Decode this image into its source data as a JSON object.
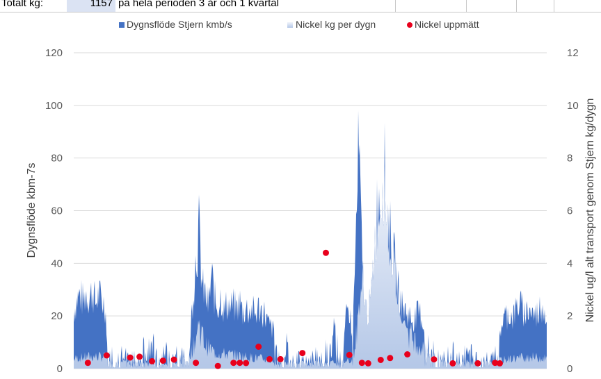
{
  "header_row": {
    "label": "Totalt kg:",
    "value": "1157",
    "note": "på hela perioden 3 år och 1 kvartal"
  },
  "colors": {
    "flow": "#4472c4",
    "nickel_kg": "#c3d1ea",
    "nickel_measured": "#e8001c",
    "gridline": "#d9d9d9"
  },
  "chart_data": {
    "type": "area",
    "x_label": "",
    "y_left": {
      "label": "Dygnsflöde kbm-7s",
      "range": [
        0,
        120
      ],
      "ticks": [
        0,
        20,
        40,
        60,
        80,
        100,
        120
      ]
    },
    "y_right": {
      "label": "Nickel ug/l alt transport genom Stjern kg/dygn",
      "range": [
        0,
        12
      ],
      "ticks": [
        0,
        2,
        4,
        6,
        8,
        10,
        12
      ]
    },
    "grid": true,
    "legend": {
      "placement": "top",
      "entries": [
        {
          "name": "Dygnsflöde Stjern kmb/s",
          "marker": "square"
        },
        {
          "name": "Nickel kg per dygn",
          "marker": "gradient-square"
        },
        {
          "name": "Nickel uppmätt",
          "marker": "dot"
        }
      ]
    },
    "flow_profile": [
      [
        0,
        28
      ],
      [
        1,
        34
      ],
      [
        2,
        36
      ],
      [
        3,
        33
      ],
      [
        4,
        37
      ],
      [
        5,
        35
      ],
      [
        6,
        38
      ],
      [
        7,
        32
      ],
      [
        8,
        36
      ],
      [
        9,
        33
      ],
      [
        10,
        31
      ],
      [
        11,
        10
      ],
      [
        12,
        9
      ],
      [
        13,
        12
      ],
      [
        14,
        7
      ],
      [
        15,
        11
      ],
      [
        16,
        6
      ],
      [
        17,
        9
      ],
      [
        18,
        5
      ],
      [
        19,
        8
      ],
      [
        20,
        6
      ],
      [
        21,
        9
      ],
      [
        22,
        15
      ],
      [
        23,
        7
      ],
      [
        24,
        12
      ],
      [
        25,
        14
      ],
      [
        26,
        16
      ],
      [
        27,
        5
      ],
      [
        28,
        8
      ],
      [
        29,
        9
      ],
      [
        30,
        12
      ],
      [
        31,
        10
      ],
      [
        32,
        7
      ],
      [
        33,
        11
      ],
      [
        34,
        9
      ],
      [
        35,
        8
      ],
      [
        36,
        10
      ],
      [
        37,
        14
      ],
      [
        38,
        34
      ],
      [
        39,
        55
      ],
      [
        40,
        68
      ],
      [
        41,
        40
      ],
      [
        42,
        36
      ],
      [
        43,
        30
      ],
      [
        44,
        46
      ],
      [
        45,
        34
      ],
      [
        46,
        30
      ],
      [
        47,
        36
      ],
      [
        48,
        28
      ],
      [
        49,
        32
      ],
      [
        50,
        30
      ],
      [
        51,
        31
      ],
      [
        52,
        29
      ],
      [
        53,
        33
      ],
      [
        54,
        27
      ],
      [
        55,
        30
      ],
      [
        56,
        28
      ],
      [
        57,
        29
      ],
      [
        58,
        26
      ],
      [
        59,
        30
      ],
      [
        60,
        28
      ],
      [
        61,
        27
      ],
      [
        62,
        22
      ],
      [
        63,
        20
      ],
      [
        64,
        18
      ],
      [
        65,
        8
      ],
      [
        66,
        6
      ],
      [
        67,
        10
      ],
      [
        68,
        14
      ],
      [
        69,
        7
      ],
      [
        70,
        9
      ],
      [
        71,
        6
      ],
      [
        72,
        8
      ],
      [
        73,
        5
      ],
      [
        74,
        7
      ],
      [
        75,
        9
      ],
      [
        76,
        6
      ],
      [
        77,
        12
      ],
      [
        78,
        8
      ],
      [
        79,
        7
      ],
      [
        80,
        15
      ],
      [
        81,
        10
      ],
      [
        82,
        12
      ],
      [
        83,
        22
      ],
      [
        84,
        16
      ],
      [
        85,
        11
      ],
      [
        86,
        10
      ],
      [
        87,
        25
      ],
      [
        88,
        30
      ],
      [
        89,
        14
      ],
      [
        90,
        60
      ],
      [
        91,
        108
      ],
      [
        92,
        55
      ],
      [
        93,
        30
      ],
      [
        94,
        28
      ],
      [
        95,
        35
      ],
      [
        96,
        60
      ],
      [
        97,
        80
      ],
      [
        98,
        88
      ],
      [
        99,
        100
      ],
      [
        100,
        78
      ],
      [
        101,
        65
      ],
      [
        102,
        55
      ],
      [
        103,
        45
      ],
      [
        104,
        35
      ],
      [
        105,
        30
      ],
      [
        106,
        28
      ],
      [
        107,
        26
      ],
      [
        108,
        24
      ],
      [
        109,
        25
      ],
      [
        110,
        27
      ],
      [
        111,
        26
      ],
      [
        112,
        18
      ],
      [
        113,
        14
      ],
      [
        114,
        10
      ],
      [
        115,
        12
      ],
      [
        116,
        7
      ],
      [
        117,
        9
      ],
      [
        118,
        8
      ],
      [
        119,
        10
      ],
      [
        120,
        7
      ],
      [
        121,
        12
      ],
      [
        122,
        9
      ],
      [
        123,
        14
      ],
      [
        124,
        6
      ],
      [
        125,
        10
      ],
      [
        126,
        8
      ],
      [
        127,
        11
      ],
      [
        128,
        7
      ],
      [
        129,
        9
      ],
      [
        130,
        6
      ],
      [
        131,
        8
      ],
      [
        132,
        7
      ],
      [
        133,
        6
      ],
      [
        134,
        8
      ],
      [
        135,
        12
      ],
      [
        136,
        18
      ],
      [
        137,
        24
      ],
      [
        138,
        26
      ],
      [
        139,
        27
      ],
      [
        140,
        25
      ],
      [
        141,
        28
      ],
      [
        142,
        32
      ],
      [
        143,
        30
      ],
      [
        144,
        27
      ],
      [
        145,
        29
      ],
      [
        146,
        28
      ],
      [
        147,
        26
      ],
      [
        148,
        27
      ],
      [
        149,
        30
      ],
      [
        150,
        32
      ],
      [
        151,
        23
      ]
    ],
    "nickel_kg_profile": [
      [
        0,
        5
      ],
      [
        5,
        6
      ],
      [
        10,
        6
      ],
      [
        12,
        4
      ],
      [
        20,
        3
      ],
      [
        27,
        3
      ],
      [
        35,
        4
      ],
      [
        38,
        10
      ],
      [
        40,
        22
      ],
      [
        42,
        12
      ],
      [
        45,
        8
      ],
      [
        50,
        7
      ],
      [
        55,
        6
      ],
      [
        60,
        5
      ],
      [
        65,
        3
      ],
      [
        75,
        3
      ],
      [
        85,
        3
      ],
      [
        89,
        5
      ],
      [
        90,
        14
      ],
      [
        92,
        40
      ],
      [
        93,
        45
      ],
      [
        95,
        50
      ],
      [
        96,
        65
      ],
      [
        97,
        70
      ],
      [
        98,
        85
      ],
      [
        99,
        97
      ],
      [
        100,
        80
      ],
      [
        101,
        60
      ],
      [
        102,
        50
      ],
      [
        103,
        40
      ],
      [
        104,
        30
      ],
      [
        105,
        25
      ],
      [
        107,
        18
      ],
      [
        110,
        12
      ],
      [
        113,
        8
      ],
      [
        115,
        6
      ],
      [
        120,
        4
      ],
      [
        130,
        3
      ],
      [
        135,
        4
      ],
      [
        140,
        5
      ],
      [
        145,
        6
      ],
      [
        151,
        5
      ]
    ],
    "nickel_measured_points": [
      [
        4.5,
        0.22
      ],
      [
        10.5,
        0.5
      ],
      [
        18,
        0.42
      ],
      [
        21,
        0.45
      ],
      [
        25,
        0.28
      ],
      [
        28.5,
        0.3
      ],
      [
        32,
        0.34
      ],
      [
        39,
        0.22
      ],
      [
        46,
        0.1
      ],
      [
        51,
        0.22
      ],
      [
        53,
        0.22
      ],
      [
        55,
        0.21
      ],
      [
        59,
        0.83
      ],
      [
        62.5,
        0.36
      ],
      [
        66,
        0.36
      ],
      [
        73,
        0.59
      ],
      [
        80.5,
        4.4
      ],
      [
        88,
        0.52
      ],
      [
        92,
        0.22
      ],
      [
        94,
        0.2
      ],
      [
        98,
        0.33
      ],
      [
        101,
        0.4
      ],
      [
        106.5,
        0.54
      ],
      [
        115,
        0.35
      ],
      [
        121,
        0.2
      ],
      [
        129,
        0.2
      ],
      [
        134.5,
        0.22
      ],
      [
        136,
        0.2
      ]
    ]
  }
}
